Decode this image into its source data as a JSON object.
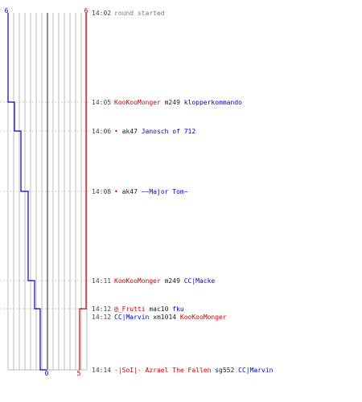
{
  "colors": {
    "team_blue": "#0000cc",
    "team_red": "#cc0000",
    "grid": "#bbbbbb",
    "center": "#666666",
    "dotted": "#c8c8c8",
    "time_text": "#444444",
    "neutral_text": "#222222",
    "info_text": "#777777"
  },
  "chart_data": {
    "type": "line",
    "title": "",
    "xlabel": "",
    "ylabel": "",
    "blue_label_top": "6",
    "red_label_top": "6",
    "blue_label_bottom": "0",
    "red_label_bottom": "5",
    "series": [
      {
        "values": [
          6,
          5,
          4,
          3,
          2,
          1,
          0
        ],
        "at_times": [
          "14:02",
          "14:05",
          "14:06",
          "14:08",
          "14:11",
          "14:12",
          "14:14"
        ]
      },
      {
        "values": [
          6,
          5
        ],
        "at_times": [
          "14:02",
          "14:12"
        ]
      }
    ]
  },
  "events": [
    {
      "time": "14:02",
      "parts": [
        {
          "text": "round started",
          "color": "#777777"
        }
      ]
    },
    {
      "time": "14:05",
      "parts": [
        {
          "text": "KooKooMonger",
          "color": "#cc0000"
        },
        {
          "text": " m249 ",
          "color": "#222222"
        },
        {
          "text": "klopperkommando",
          "color": "#0000cc"
        }
      ]
    },
    {
      "time": "14:06",
      "parts": [
        {
          "text": "•",
          "color": "#cc0000"
        },
        {
          "text": " ak47 ",
          "color": "#222222"
        },
        {
          "text": "Janosch of 712",
          "color": "#0000cc"
        }
      ]
    },
    {
      "time": "14:08",
      "parts": [
        {
          "text": "•",
          "color": "#cc0000"
        },
        {
          "text": " ak47 ",
          "color": "#222222"
        },
        {
          "text": "~~Major Tom~",
          "color": "#0000cc"
        }
      ]
    },
    {
      "time": "14:11",
      "parts": [
        {
          "text": "KooKooMonger",
          "color": "#cc0000"
        },
        {
          "text": " m249 ",
          "color": "#222222"
        },
        {
          "text": "CC|Macke",
          "color": "#0000cc"
        }
      ]
    },
    {
      "time": "14:12",
      "parts": [
        {
          "text": "@_Frutti",
          "color": "#cc0000"
        },
        {
          "text": " mac10 ",
          "color": "#222222"
        },
        {
          "text": "fku",
          "color": "#0000cc"
        }
      ]
    },
    {
      "time": "14:12",
      "parts": [
        {
          "text": "CC|Marvin",
          "color": "#0000cc"
        },
        {
          "text": " xm1014 ",
          "color": "#222222"
        },
        {
          "text": "KooKooMonger",
          "color": "#cc0000"
        }
      ]
    },
    {
      "time": "14:14",
      "parts": [
        {
          "text": "-|SoI|- Azrael The Fallen",
          "color": "#cc0000"
        },
        {
          "text": " sg552 ",
          "color": "#222222"
        },
        {
          "text": "CC|Marvin",
          "color": "#0000cc"
        }
      ]
    }
  ]
}
